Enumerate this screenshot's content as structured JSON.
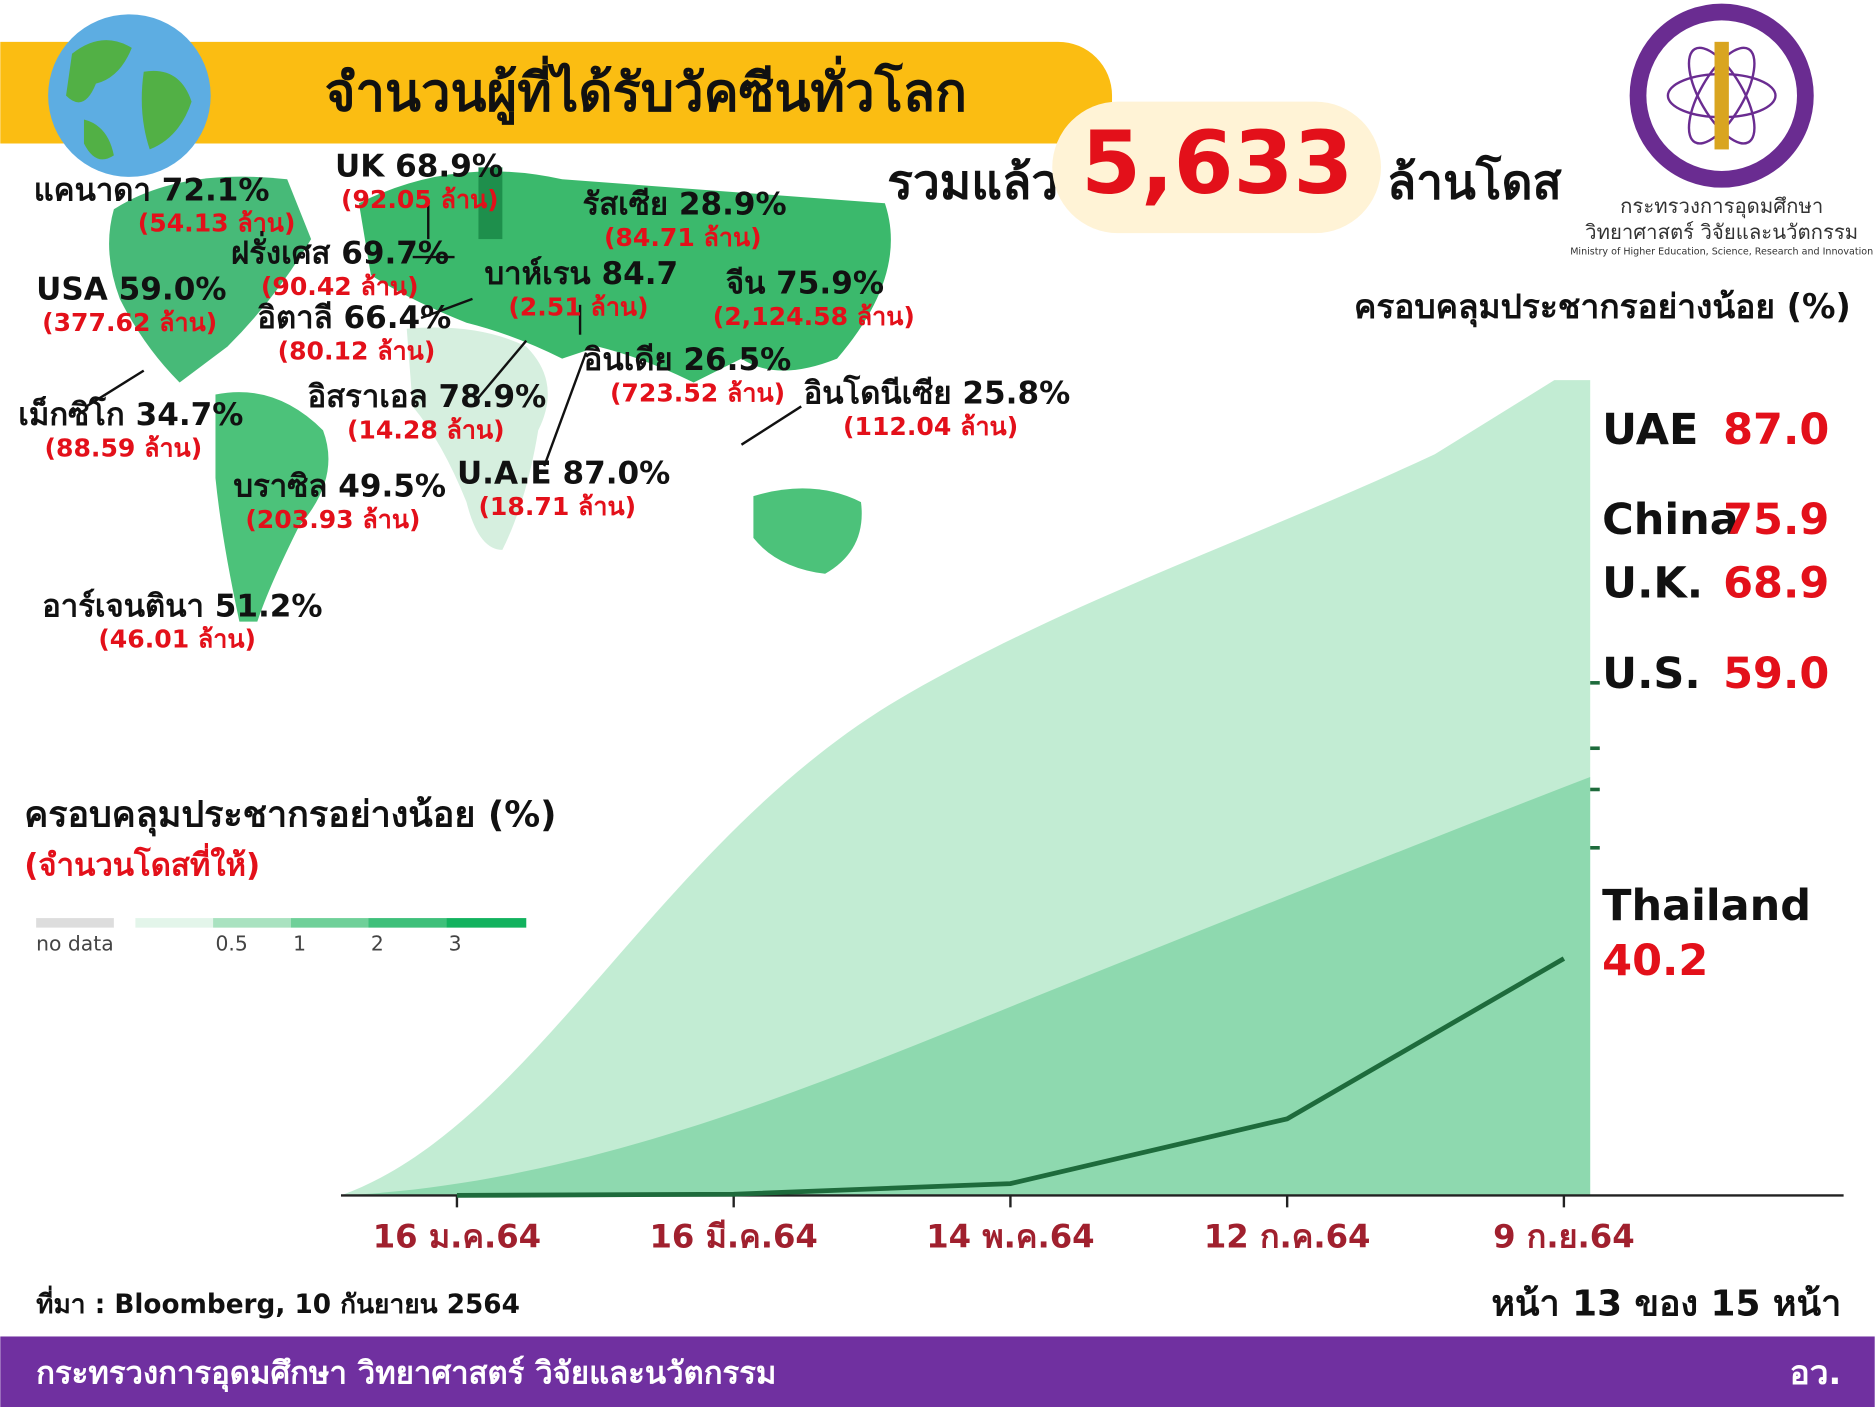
{
  "header": {
    "title": "จำนวนผู้ที่ได้รับวัคซีนทั่วโลก",
    "total_prefix": "รวมแล้ว",
    "total": "5,633",
    "total_unit": "ล้านโดส"
  },
  "logo": {
    "line1": "กระทรวงการอุดมศึกษา",
    "line2": "วิทยาศาสตร์ วิจัยและนวัตกรรม",
    "line3": "Ministry of Higher Education, Science, Research and Innovation"
  },
  "map": {
    "labels": [
      {
        "text": "แคนาดา 72.1%",
        "doses": "(54.13 ล้าน)"
      },
      {
        "text": "UK 68.9%",
        "doses": "(92.05 ล้าน)"
      },
      {
        "text": "รัสเซีย 28.9%",
        "doses": "(84.71 ล้าน)"
      },
      {
        "text": "ฝรั่งเศส 69.7%",
        "doses": "(90.42 ล้าน)"
      },
      {
        "text": "บาห์เรน 84.7",
        "doses": "(2.51 ล้าน)"
      },
      {
        "text": "จีน 75.9%",
        "doses": "(2,124.58 ล้าน)"
      },
      {
        "text": "USA 59.0%",
        "doses": "(377.62 ล้าน)"
      },
      {
        "text": "อิตาลี 66.4%",
        "doses": "(80.12 ล้าน)"
      },
      {
        "text": "อินเดีย 26.5%",
        "doses": "(723.52 ล้าน)"
      },
      {
        "text": "อิสราเอล 78.9%",
        "doses": "(14.28 ล้าน)"
      },
      {
        "text": "อินโดนีเซีย 25.8%",
        "doses": "(112.04 ล้าน)"
      },
      {
        "text": "เม็กซิโก 34.7%",
        "doses": "(88.59 ล้าน)"
      },
      {
        "text": "U.A.E 87.0%",
        "doses": "(18.71 ล้าน)"
      },
      {
        "text": "บราซิล 49.5%",
        "doses": "(203.93 ล้าน)"
      },
      {
        "text": "อาร์เจนตินา 51.2%",
        "doses": "(46.01 ล้าน)"
      }
    ],
    "legend_title": "ครอบคลุมประชากรอย่างน้อย (%)",
    "legend_subtitle": "(จำนวนโดสที่ให้)",
    "legend_labels": [
      "no data",
      "0.5",
      "1",
      "2",
      "3"
    ]
  },
  "chart_data": {
    "type": "line",
    "title": "ครอบคลุมประชากรอย่างน้อย (%)",
    "categories": [
      "16 ม.ค.64",
      "16 มี.ค.64",
      "14 พ.ค.64",
      "12 ก.ค.64",
      "9 ก.ย.64"
    ],
    "ylim": [
      0,
      140
    ],
    "series": [
      {
        "name": "Thailand",
        "color": "#1e6b3c",
        "values": [
          0,
          0.2,
          2,
          13,
          40.2
        ]
      }
    ],
    "highlights": [
      {
        "name": "UAE",
        "value": 87,
        "label": "87.0"
      },
      {
        "name": "China",
        "value": 75.9
      },
      {
        "name": "U.K.",
        "value": 68.9
      },
      {
        "name": "U.S.",
        "value": 59,
        "label": "59.0"
      }
    ]
  },
  "footer": {
    "source": "ที่มา : Bloomberg, 10 กันยายน 2564",
    "page": "หน้า 13 ของ 15 หน้า",
    "ministry": "กระทรวงการอุดมศึกษา วิทยาศาสตร์ วิจัยและนวัตกรรม",
    "abbr": "อว."
  }
}
